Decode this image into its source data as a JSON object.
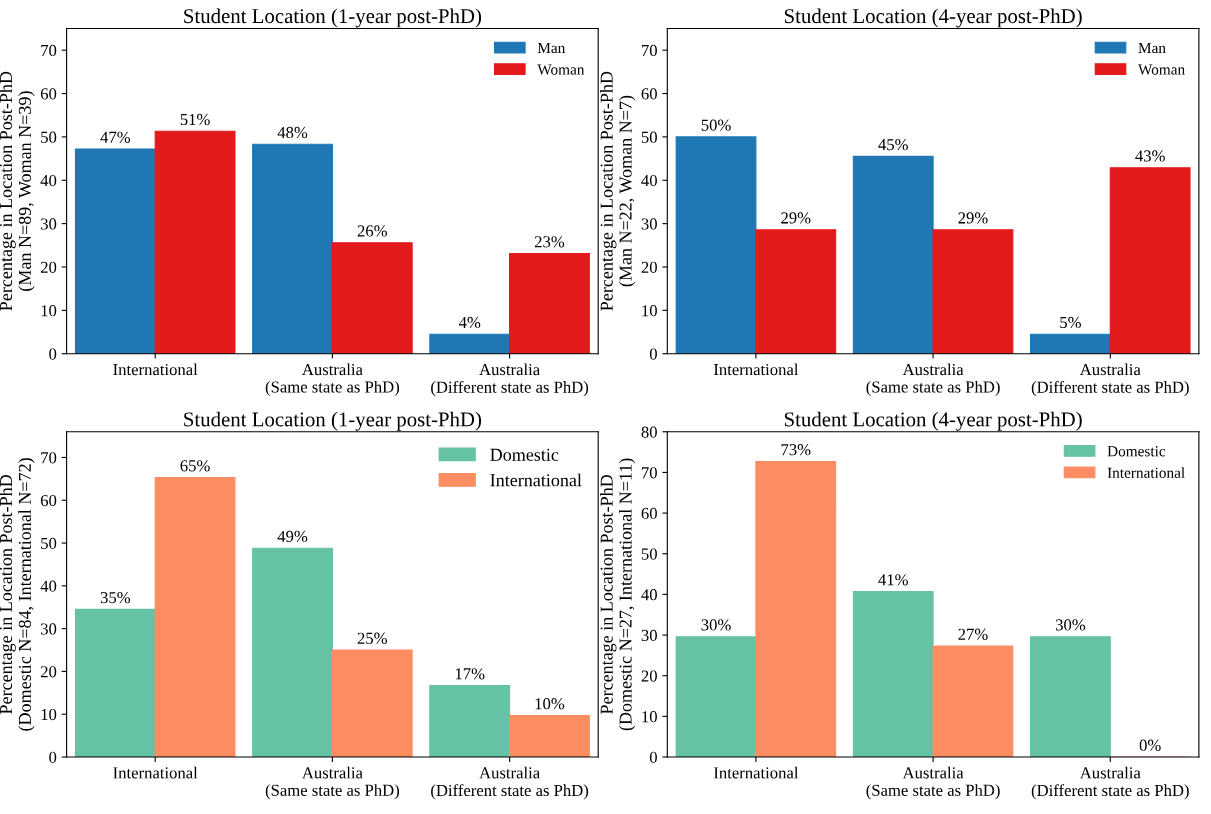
{
  "chart_data": [
    {
      "type": "bar",
      "title": "Student Location (1-year post-PhD)",
      "ylabel": "Percentage in Location Post-PhD\n(Man N=89, Woman N=39)",
      "categories": [
        "International",
        "Australia\n(Same state as PhD)",
        "Australia\n(Different state as PhD)"
      ],
      "ylim": [
        0,
        75
      ],
      "yticks": [
        0,
        10,
        20,
        30,
        40,
        50,
        60,
        70
      ],
      "legend": "top right",
      "grid": false,
      "series": [
        {
          "name": "Man",
          "color": "#1f77b4",
          "values": [
            47.2,
            48.3,
            4.5
          ],
          "value_labels": [
            "47%",
            "48%",
            "4%"
          ]
        },
        {
          "name": "Woman",
          "color": "#e31a1c",
          "values": [
            51.3,
            25.6,
            23.1
          ],
          "value_labels": [
            "51%",
            "26%",
            "23%"
          ]
        }
      ]
    },
    {
      "type": "bar",
      "title": "Student Location (4-year post-PhD)",
      "ylabel": "Percentage in Location Post-PhD\n(Man N=22, Woman N=7)",
      "categories": [
        "International",
        "Australia\n(Same state as PhD)",
        "Australia\n(Different state as PhD)"
      ],
      "ylim": [
        0,
        75
      ],
      "yticks": [
        0,
        10,
        20,
        30,
        40,
        50,
        60,
        70
      ],
      "legend": "top right",
      "grid": false,
      "series": [
        {
          "name": "Man",
          "color": "#1f77b4",
          "values": [
            50.0,
            45.5,
            4.5
          ],
          "value_labels": [
            "50%",
            "45%",
            "5%"
          ]
        },
        {
          "name": "Woman",
          "color": "#e31a1c",
          "values": [
            28.6,
            28.6,
            42.9
          ],
          "value_labels": [
            "29%",
            "29%",
            "43%"
          ]
        }
      ]
    },
    {
      "type": "bar",
      "title": "Student Location (1-year post-PhD)",
      "ylabel": "Percentage in Location Post-PhD\n(Domestic N=84, International N=72)",
      "categories": [
        "International",
        "Australia\n(Same state as PhD)",
        "Australia\n(Different state as PhD)"
      ],
      "ylim": [
        0,
        76
      ],
      "yticks": [
        0,
        10,
        20,
        30,
        40,
        50,
        60,
        70
      ],
      "legend": "top right",
      "grid": false,
      "series": [
        {
          "name": "Domestic",
          "color": "#66c2a5",
          "values": [
            34.5,
            48.8,
            16.7
          ],
          "value_labels": [
            "35%",
            "49%",
            "17%"
          ]
        },
        {
          "name": "International",
          "color": "#fc8d62",
          "values": [
            65.3,
            25.0,
            9.7
          ],
          "value_labels": [
            "65%",
            "25%",
            "10%"
          ]
        }
      ]
    },
    {
      "type": "bar",
      "title": "Student Location (4-year post-PhD)",
      "ylabel": "Percentage in Location Post-PhD\n(Domestic N=27, International N=11)",
      "categories": [
        "International",
        "Australia\n(Same state as PhD)",
        "Australia\n(Different state as PhD)"
      ],
      "ylim": [
        0,
        80
      ],
      "yticks": [
        0,
        10,
        20,
        30,
        40,
        50,
        60,
        70,
        80
      ],
      "legend": "top right",
      "grid": false,
      "series": [
        {
          "name": "Domestic",
          "color": "#66c2a5",
          "values": [
            29.6,
            40.7,
            29.6
          ],
          "value_labels": [
            "30%",
            "41%",
            "30%"
          ]
        },
        {
          "name": "International",
          "color": "#fc8d62",
          "values": [
            72.7,
            27.3,
            0.0
          ],
          "value_labels": [
            "73%",
            "27%",
            "0%"
          ]
        }
      ]
    }
  ]
}
